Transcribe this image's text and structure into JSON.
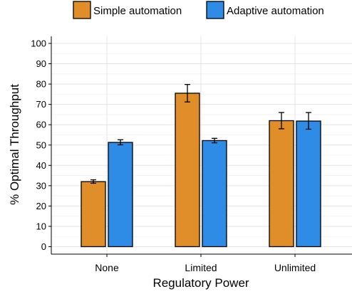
{
  "chart_data": {
    "type": "bar",
    "xlabel": "Regulatory Power",
    "ylabel": "% Optimal Throughput",
    "ylim": [
      0,
      100
    ],
    "yticks": [
      0,
      10,
      20,
      30,
      40,
      50,
      60,
      70,
      80,
      90,
      100
    ],
    "categories": [
      "None",
      "Limited",
      "Unlimited"
    ],
    "series": [
      {
        "name": "Simple automation",
        "color": "#E08E2A",
        "values": [
          32,
          75.5,
          62
        ],
        "error_low": [
          31.2,
          71.2,
          58
        ],
        "error_high": [
          32.9,
          79.8,
          66
        ]
      },
      {
        "name": "Adaptive automation",
        "color": "#2E8BE6",
        "values": [
          51.3,
          52.2,
          61.8
        ],
        "error_low": [
          50.1,
          51.1,
          57.8
        ],
        "error_high": [
          52.6,
          53.3,
          66
        ]
      }
    ],
    "legend_position": "top",
    "grid": true
  }
}
